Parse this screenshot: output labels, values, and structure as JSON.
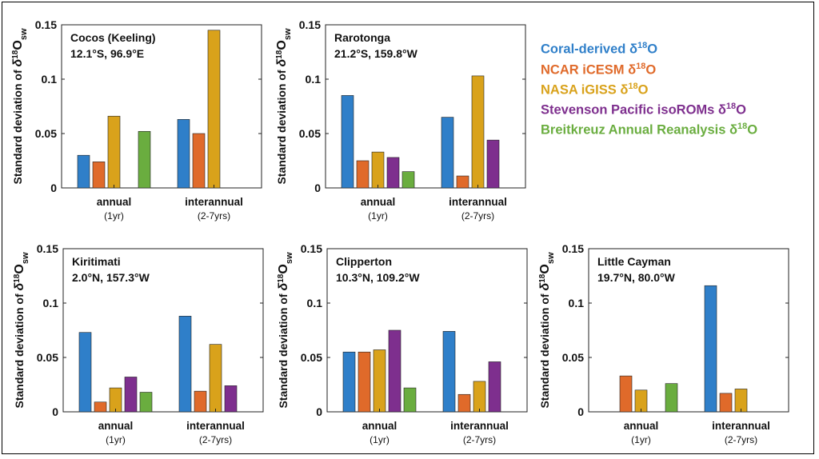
{
  "legend": [
    {
      "name": "Coral-derived δ",
      "sup": "18",
      "tail": "O",
      "color": "#2f7fc9"
    },
    {
      "name": "NCAR iCESM δ",
      "sup": "18",
      "tail": "O",
      "color": "#e06a2a"
    },
    {
      "name": "NASA iGISS δ",
      "sup": "18",
      "tail": "O",
      "color": "#d9a21b"
    },
    {
      "name": "Stevenson Pacific isoROMs δ",
      "sup": "18",
      "tail": "O",
      "color": "#7e2f8e"
    },
    {
      "name": "Breitkreuz Annual Reanalysis δ",
      "sup": "18",
      "tail": "O",
      "color": "#6aad3f"
    }
  ],
  "chart_data": [
    {
      "type": "bar",
      "site": "Cocos (Keeling)",
      "coords": "12.1°S, 96.9°E",
      "ylabel": "Standard deviation of δ18Osw",
      "ylim": [
        0,
        0.15
      ],
      "yticks": [
        "0",
        "0.05",
        "0.1",
        "0.15"
      ],
      "categories": [
        "annual",
        "interannual"
      ],
      "category_sublabels": [
        "(1yr)",
        "(2-7yrs)"
      ],
      "series": [
        {
          "name": "Coral-derived",
          "values": [
            0.03,
            0.063
          ]
        },
        {
          "name": "NCAR iCESM",
          "values": [
            0.024,
            0.05
          ]
        },
        {
          "name": "NASA iGISS",
          "values": [
            0.066,
            0.145
          ]
        },
        {
          "name": "Stevenson Pacific isoROMs",
          "values": [
            null,
            null
          ]
        },
        {
          "name": "Breitkreuz Annual Reanalysis",
          "values": [
            0.052,
            null
          ]
        }
      ]
    },
    {
      "type": "bar",
      "site": "Rarotonga",
      "coords": "21.2°S, 159.8°W",
      "ylabel": "Standard deviation of δ18Osw",
      "ylim": [
        0,
        0.15
      ],
      "yticks": [
        "0",
        "0.05",
        "0.1",
        "0.15"
      ],
      "categories": [
        "annual",
        "interannual"
      ],
      "category_sublabels": [
        "(1yr)",
        "(2-7yrs)"
      ],
      "series": [
        {
          "name": "Coral-derived",
          "values": [
            0.085,
            0.065
          ]
        },
        {
          "name": "NCAR iCESM",
          "values": [
            0.025,
            0.011
          ]
        },
        {
          "name": "NASA iGISS",
          "values": [
            0.033,
            0.103
          ]
        },
        {
          "name": "Stevenson Pacific isoROMs",
          "values": [
            0.028,
            0.044
          ]
        },
        {
          "name": "Breitkreuz Annual Reanalysis",
          "values": [
            0.015,
            null
          ]
        }
      ]
    },
    {
      "type": "bar",
      "site": "Kiritimati",
      "coords": "2.0°N, 157.3°W",
      "ylabel": "Standard deviation of δ18Osw",
      "ylim": [
        0,
        0.15
      ],
      "yticks": [
        "0",
        "0.05",
        "0.1",
        "0.15"
      ],
      "categories": [
        "annual",
        "interannual"
      ],
      "category_sublabels": [
        "(1yr)",
        "(2-7yrs)"
      ],
      "series": [
        {
          "name": "Coral-derived",
          "values": [
            0.073,
            0.088
          ]
        },
        {
          "name": "NCAR iCESM",
          "values": [
            0.009,
            0.019
          ]
        },
        {
          "name": "NASA iGISS",
          "values": [
            0.022,
            0.062
          ]
        },
        {
          "name": "Stevenson Pacific isoROMs",
          "values": [
            0.032,
            0.024
          ]
        },
        {
          "name": "Breitkreuz Annual Reanalysis",
          "values": [
            0.018,
            null
          ]
        }
      ]
    },
    {
      "type": "bar",
      "site": "Clipperton",
      "coords": "10.3°N, 109.2°W",
      "ylabel": "Standard deviation of δ18Osw",
      "ylim": [
        0,
        0.15
      ],
      "yticks": [
        "0",
        "0.05",
        "0.1",
        "0.15"
      ],
      "categories": [
        "annual",
        "interannual"
      ],
      "category_sublabels": [
        "(1yr)",
        "(2-7yrs)"
      ],
      "series": [
        {
          "name": "Coral-derived",
          "values": [
            0.055,
            0.074
          ]
        },
        {
          "name": "NCAR iCESM",
          "values": [
            0.055,
            0.016
          ]
        },
        {
          "name": "NASA iGISS",
          "values": [
            0.057,
            0.028
          ]
        },
        {
          "name": "Stevenson Pacific isoROMs",
          "values": [
            0.075,
            0.046
          ]
        },
        {
          "name": "Breitkreuz Annual Reanalysis",
          "values": [
            0.022,
            null
          ]
        }
      ]
    },
    {
      "type": "bar",
      "site": "Little Cayman",
      "coords": "19.7°N, 80.0°W",
      "ylabel": "Standard deviation of δ18Osw",
      "ylim": [
        0,
        0.15
      ],
      "yticks": [
        "0",
        "0.05",
        "0.1",
        "0.15"
      ],
      "categories": [
        "annual",
        "interannual"
      ],
      "category_sublabels": [
        "(1yr)",
        "(2-7yrs)"
      ],
      "series": [
        {
          "name": "Coral-derived",
          "values": [
            null,
            0.116
          ]
        },
        {
          "name": "NCAR iCESM",
          "values": [
            0.033,
            0.017
          ]
        },
        {
          "name": "NASA iGISS",
          "values": [
            0.02,
            0.021
          ]
        },
        {
          "name": "Stevenson Pacific isoROMs",
          "values": [
            null,
            null
          ]
        },
        {
          "name": "Breitkreuz Annual Reanalysis",
          "values": [
            0.026,
            null
          ]
        }
      ]
    }
  ]
}
